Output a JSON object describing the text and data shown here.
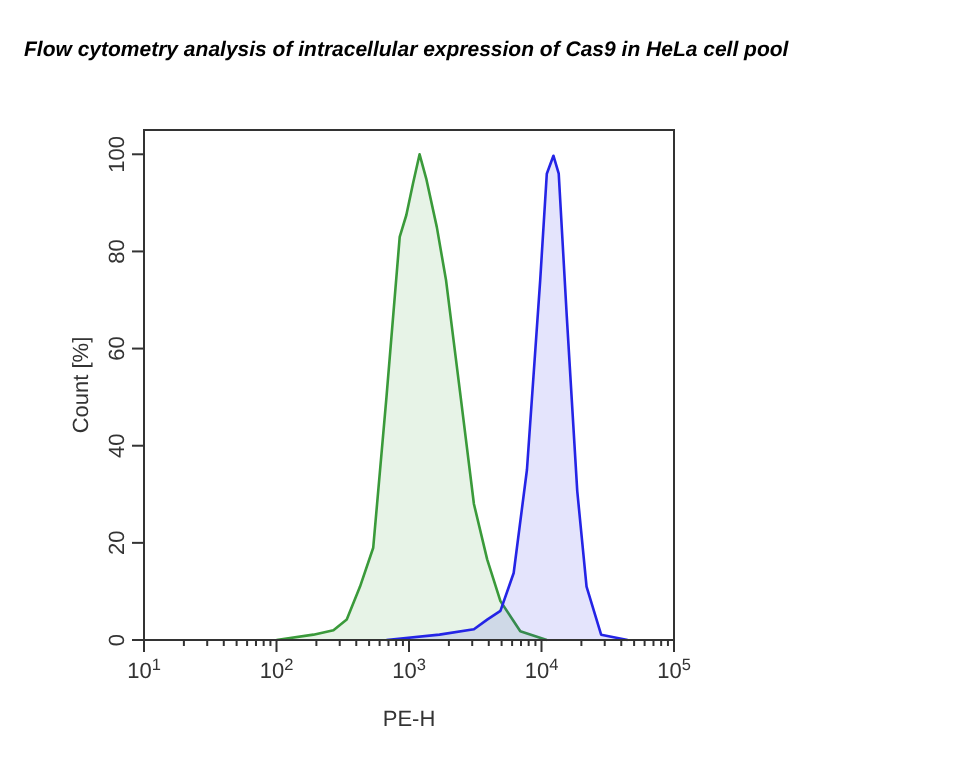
{
  "chart_data": {
    "type": "area",
    "title": "Flow cytometry analysis of intracellular expression of Cas9 in HeLa cell pool",
    "xlabel": "PE-H",
    "ylabel": "Count [%]",
    "log": "x",
    "grid": false,
    "xlim": [
      10,
      100000
    ],
    "ylim": [
      0,
      105
    ],
    "xticks": [
      {
        "value": 10,
        "label": "10$^{1}$"
      },
      {
        "value": 20,
        "label": null
      },
      {
        "value": 30,
        "label": null
      },
      {
        "value": 40,
        "label": null
      },
      {
        "value": 50,
        "label": null
      },
      {
        "value": 60,
        "label": null
      },
      {
        "value": 70,
        "label": null
      },
      {
        "value": 80,
        "label": null
      },
      {
        "value": 90,
        "label": null
      },
      {
        "value": 100,
        "label": "10$^{2}$"
      },
      {
        "value": 200,
        "label": null
      },
      {
        "value": 300,
        "label": null
      },
      {
        "value": 400,
        "label": null
      },
      {
        "value": 500,
        "label": null
      },
      {
        "value": 600,
        "label": null
      },
      {
        "value": 700,
        "label": null
      },
      {
        "value": 800,
        "label": null
      },
      {
        "value": 900,
        "label": null
      },
      {
        "value": 1000,
        "label": "10$^{3}$"
      },
      {
        "value": 2000,
        "label": null
      },
      {
        "value": 3000,
        "label": null
      },
      {
        "value": 4000,
        "label": null
      },
      {
        "value": 5000,
        "label": null
      },
      {
        "value": 6000,
        "label": null
      },
      {
        "value": 7000,
        "label": null
      },
      {
        "value": 8000,
        "label": null
      },
      {
        "value": 9000,
        "label": null
      },
      {
        "value": 10000,
        "label": "10$^{4}$"
      },
      {
        "value": 20000,
        "label": null
      },
      {
        "value": 30000,
        "label": null
      },
      {
        "value": 40000,
        "label": null
      },
      {
        "value": 50000,
        "label": null
      },
      {
        "value": 60000,
        "label": null
      },
      {
        "value": 70000,
        "label": null
      },
      {
        "value": 80000,
        "label": null
      },
      {
        "value": 90000,
        "label": null
      },
      {
        "value": 100000,
        "label": "10$^{5}$"
      }
    ],
    "yticks": [
      0,
      20,
      40,
      60,
      80,
      100
    ],
    "series": [
      {
        "color": "#3a9a3a",
        "x": [
          100,
          190,
          269,
          339,
          427,
          537,
          676,
          851,
          955,
          1072,
          1202,
          1349,
          1622,
          1905,
          2455,
          3090,
          3890,
          4898,
          6918,
          10965
        ],
        "values": [
          0,
          1.1,
          2,
          4.2,
          11,
          19,
          50,
          83,
          87.5,
          94,
          100,
          95,
          85,
          74,
          50,
          28,
          16.6,
          8,
          1.8,
          0
        ]
      },
      {
        "color": "#2424e6",
        "x": [
          676,
          1698,
          3090,
          3890,
          4898,
          6166,
          7762,
          9772,
          10965,
          12303,
          13490,
          15488,
          18621,
          21878,
          28184,
          44668
        ],
        "values": [
          0,
          1.1,
          2.2,
          4.2,
          6,
          13.8,
          35,
          74,
          96,
          99.7,
          96,
          67,
          30.6,
          11,
          1.1,
          0
        ]
      }
    ]
  }
}
